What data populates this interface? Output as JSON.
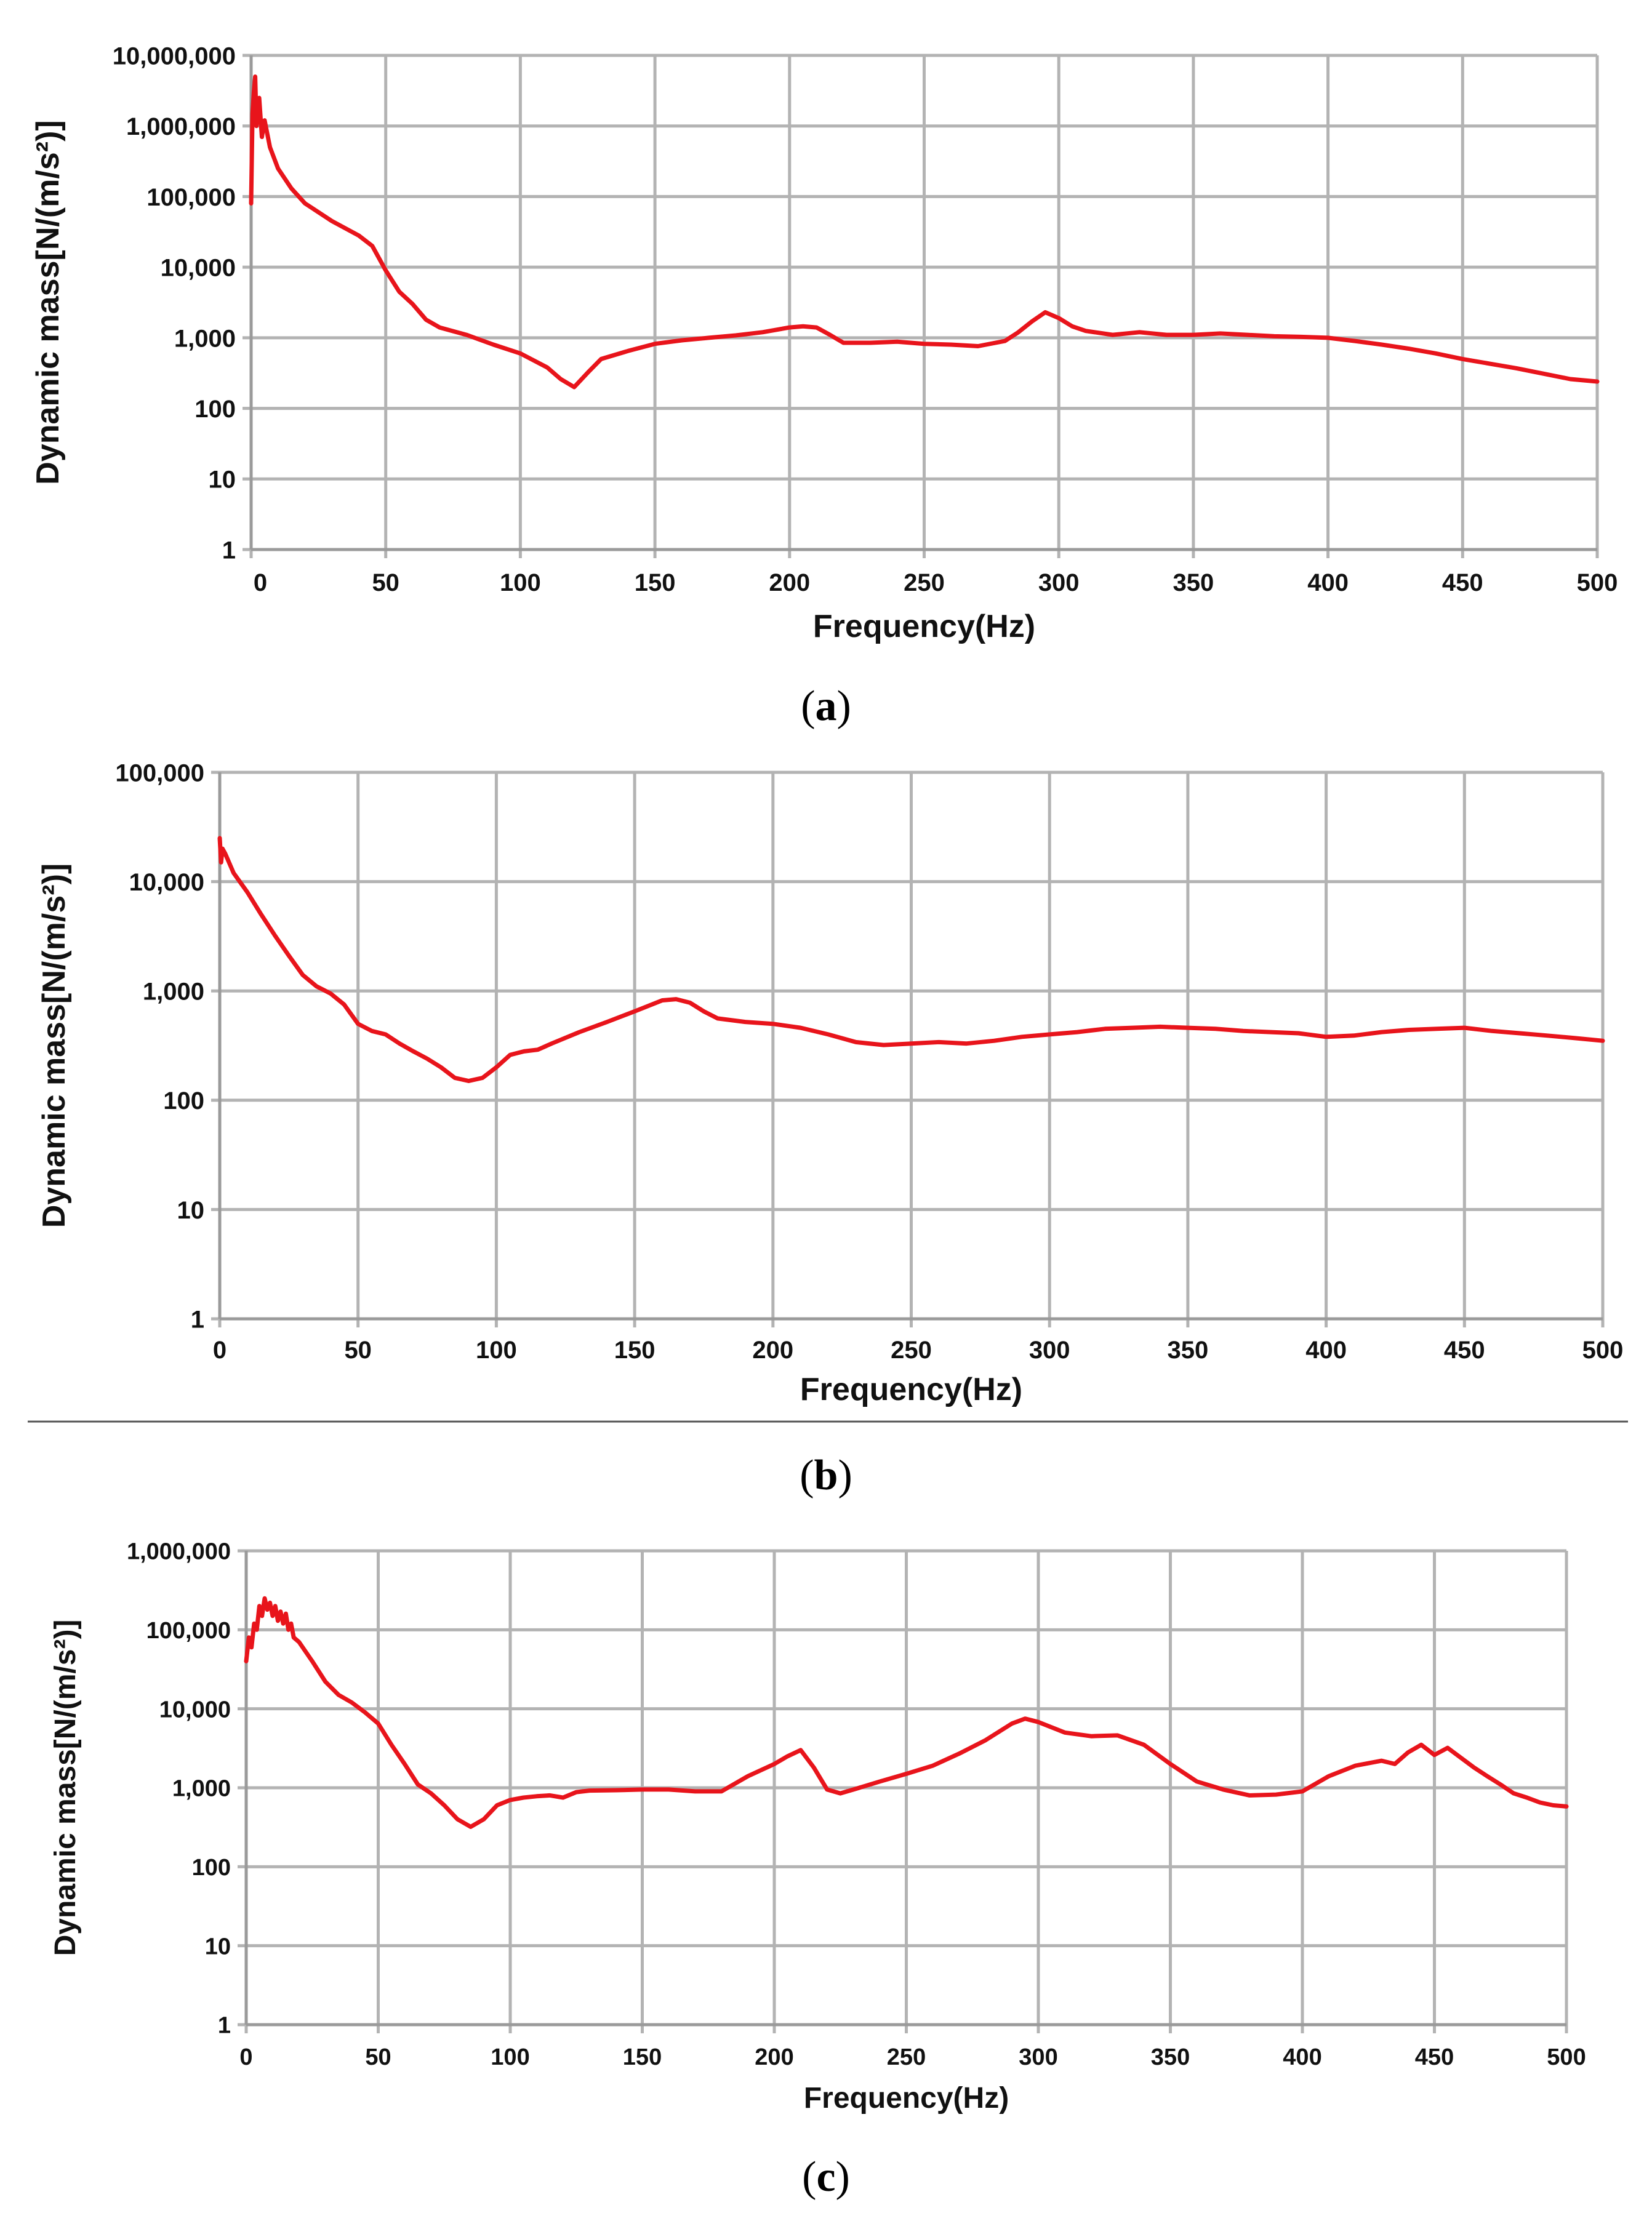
{
  "chart_data": [
    {
      "type": "line",
      "panel_label": "a",
      "xlabel": "Frequency(Hz)",
      "ylabel": "Dynamic mass[N/(m/s²)]",
      "yscale": "log",
      "xlim": [
        0,
        500
      ],
      "ylim": [
        1,
        10000000
      ],
      "xticks": [
        0,
        50,
        100,
        150,
        200,
        250,
        300,
        350,
        400,
        450,
        500
      ],
      "yticks": [
        1,
        10,
        100,
        1000,
        10000,
        100000,
        1000000,
        10000000
      ],
      "ytick_labels": [
        "1",
        "10",
        "100",
        "1,000",
        "10,000",
        "100,000",
        "1,000,000",
        "10,000,000"
      ],
      "grid": true,
      "series": [
        {
          "name": "Dynamic mass",
          "color": "#e8141b",
          "points": [
            [
              0,
              80000
            ],
            [
              0.5,
              1500000
            ],
            [
              1,
              3000000
            ],
            [
              1.5,
              5000000
            ],
            [
              2,
              1000000
            ],
            [
              3,
              2500000
            ],
            [
              4,
              700000
            ],
            [
              5,
              1200000
            ],
            [
              7,
              500000
            ],
            [
              10,
              250000
            ],
            [
              15,
              130000
            ],
            [
              20,
              80000
            ],
            [
              30,
              45000
            ],
            [
              40,
              28000
            ],
            [
              45,
              20000
            ],
            [
              50,
              9000
            ],
            [
              55,
              4500
            ],
            [
              60,
              3000
            ],
            [
              65,
              1800
            ],
            [
              70,
              1400
            ],
            [
              80,
              1100
            ],
            [
              90,
              800
            ],
            [
              100,
              600
            ],
            [
              110,
              380
            ],
            [
              115,
              260
            ],
            [
              120,
              200
            ],
            [
              125,
              320
            ],
            [
              130,
              500
            ],
            [
              140,
              650
            ],
            [
              150,
              820
            ],
            [
              160,
              920
            ],
            [
              170,
              1000
            ],
            [
              180,
              1080
            ],
            [
              190,
              1200
            ],
            [
              200,
              1400
            ],
            [
              205,
              1450
            ],
            [
              210,
              1400
            ],
            [
              215,
              1100
            ],
            [
              220,
              850
            ],
            [
              230,
              850
            ],
            [
              240,
              880
            ],
            [
              250,
              820
            ],
            [
              260,
              800
            ],
            [
              270,
              760
            ],
            [
              280,
              900
            ],
            [
              285,
              1200
            ],
            [
              290,
              1700
            ],
            [
              295,
              2300
            ],
            [
              300,
              1900
            ],
            [
              305,
              1450
            ],
            [
              310,
              1250
            ],
            [
              320,
              1100
            ],
            [
              330,
              1200
            ],
            [
              340,
              1100
            ],
            [
              350,
              1100
            ],
            [
              360,
              1150
            ],
            [
              370,
              1100
            ],
            [
              380,
              1050
            ],
            [
              390,
              1030
            ],
            [
              400,
              1000
            ],
            [
              410,
              900
            ],
            [
              420,
              800
            ],
            [
              430,
              700
            ],
            [
              440,
              600
            ],
            [
              450,
              500
            ],
            [
              460,
              430
            ],
            [
              470,
              370
            ],
            [
              480,
              310
            ],
            [
              490,
              260
            ],
            [
              500,
              240
            ]
          ]
        }
      ]
    },
    {
      "type": "line",
      "panel_label": "b",
      "xlabel": "Frequency(Hz)",
      "ylabel": "Dynamic mass[N/(m/s²)]",
      "yscale": "log",
      "xlim": [
        0,
        500
      ],
      "ylim": [
        1,
        100000
      ],
      "xticks": [
        0,
        50,
        100,
        150,
        200,
        250,
        300,
        350,
        400,
        450,
        500
      ],
      "yticks": [
        1,
        10,
        100,
        1000,
        10000,
        100000
      ],
      "ytick_labels": [
        "1",
        "10",
        "100",
        "1,000",
        "10,000",
        "100,000"
      ],
      "grid": true,
      "series": [
        {
          "name": "Dynamic mass",
          "color": "#e8141b",
          "points": [
            [
              0,
              25000
            ],
            [
              0.5,
              15000
            ],
            [
              1,
              20000
            ],
            [
              2,
              18000
            ],
            [
              5,
              12000
            ],
            [
              10,
              8000
            ],
            [
              15,
              5000
            ],
            [
              20,
              3200
            ],
            [
              25,
              2100
            ],
            [
              30,
              1400
            ],
            [
              35,
              1100
            ],
            [
              40,
              950
            ],
            [
              45,
              750
            ],
            [
              50,
              500
            ],
            [
              55,
              430
            ],
            [
              60,
              400
            ],
            [
              65,
              330
            ],
            [
              70,
              280
            ],
            [
              75,
              240
            ],
            [
              80,
              200
            ],
            [
              85,
              160
            ],
            [
              90,
              150
            ],
            [
              95,
              160
            ],
            [
              100,
              200
            ],
            [
              105,
              260
            ],
            [
              110,
              280
            ],
            [
              115,
              290
            ],
            [
              120,
              330
            ],
            [
              130,
              420
            ],
            [
              140,
              520
            ],
            [
              150,
              650
            ],
            [
              160,
              820
            ],
            [
              165,
              840
            ],
            [
              170,
              780
            ],
            [
              175,
              650
            ],
            [
              180,
              560
            ],
            [
              190,
              520
            ],
            [
              200,
              500
            ],
            [
              210,
              460
            ],
            [
              220,
              400
            ],
            [
              230,
              340
            ],
            [
              240,
              320
            ],
            [
              250,
              330
            ],
            [
              260,
              340
            ],
            [
              270,
              330
            ],
            [
              280,
              350
            ],
            [
              290,
              380
            ],
            [
              300,
              400
            ],
            [
              310,
              420
            ],
            [
              320,
              450
            ],
            [
              330,
              460
            ],
            [
              340,
              470
            ],
            [
              350,
              460
            ],
            [
              360,
              450
            ],
            [
              370,
              430
            ],
            [
              380,
              420
            ],
            [
              390,
              410
            ],
            [
              400,
              380
            ],
            [
              410,
              390
            ],
            [
              420,
              420
            ],
            [
              430,
              440
            ],
            [
              440,
              450
            ],
            [
              450,
              460
            ],
            [
              460,
              430
            ],
            [
              470,
              410
            ],
            [
              480,
              390
            ],
            [
              490,
              370
            ],
            [
              500,
              350
            ]
          ]
        }
      ]
    },
    {
      "type": "line",
      "panel_label": "c",
      "xlabel": "Frequency(Hz)",
      "ylabel": "Dynamic mass[N/(m/s²)]",
      "yscale": "log",
      "xlim": [
        0,
        500
      ],
      "ylim": [
        1,
        1000000
      ],
      "xticks": [
        0,
        50,
        100,
        150,
        200,
        250,
        300,
        350,
        400,
        450,
        500
      ],
      "yticks": [
        1,
        10,
        100,
        1000,
        10000,
        100000,
        1000000
      ],
      "ytick_labels": [
        "1",
        "10",
        "100",
        "1,000",
        "10,000",
        "100,000",
        "1,000,000"
      ],
      "grid": true,
      "series": [
        {
          "name": "Dynamic mass",
          "color": "#e8141b",
          "points": [
            [
              0,
              40000
            ],
            [
              1,
              80000
            ],
            [
              2,
              60000
            ],
            [
              3,
              120000
            ],
            [
              4,
              100000
            ],
            [
              5,
              200000
            ],
            [
              6,
              150000
            ],
            [
              7,
              250000
            ],
            [
              8,
              180000
            ],
            [
              9,
              220000
            ],
            [
              10,
              150000
            ],
            [
              11,
              200000
            ],
            [
              12,
              130000
            ],
            [
              13,
              170000
            ],
            [
              14,
              120000
            ],
            [
              15,
              160000
            ],
            [
              16,
              100000
            ],
            [
              17,
              120000
            ],
            [
              18,
              80000
            ],
            [
              20,
              70000
            ],
            [
              25,
              40000
            ],
            [
              30,
              22000
            ],
            [
              35,
              15000
            ],
            [
              40,
              12000
            ],
            [
              45,
              9000
            ],
            [
              50,
              6500
            ],
            [
              55,
              3500
            ],
            [
              60,
              2000
            ],
            [
              65,
              1100
            ],
            [
              70,
              850
            ],
            [
              75,
              600
            ],
            [
              80,
              400
            ],
            [
              85,
              320
            ],
            [
              90,
              400
            ],
            [
              95,
              600
            ],
            [
              100,
              700
            ],
            [
              105,
              750
            ],
            [
              110,
              780
            ],
            [
              115,
              800
            ],
            [
              120,
              750
            ],
            [
              125,
              880
            ],
            [
              130,
              920
            ],
            [
              140,
              930
            ],
            [
              150,
              950
            ],
            [
              160,
              950
            ],
            [
              170,
              900
            ],
            [
              180,
              900
            ],
            [
              190,
              1400
            ],
            [
              200,
              2000
            ],
            [
              205,
              2500
            ],
            [
              210,
              3000
            ],
            [
              215,
              1800
            ],
            [
              220,
              950
            ],
            [
              225,
              850
            ],
            [
              230,
              950
            ],
            [
              240,
              1200
            ],
            [
              250,
              1500
            ],
            [
              260,
              1900
            ],
            [
              270,
              2700
            ],
            [
              280,
              4000
            ],
            [
              290,
              6500
            ],
            [
              295,
              7500
            ],
            [
              300,
              6800
            ],
            [
              310,
              5000
            ],
            [
              320,
              4500
            ],
            [
              330,
              4600
            ],
            [
              340,
              3500
            ],
            [
              350,
              2000
            ],
            [
              360,
              1200
            ],
            [
              370,
              950
            ],
            [
              380,
              800
            ],
            [
              390,
              820
            ],
            [
              400,
              900
            ],
            [
              410,
              1400
            ],
            [
              420,
              1900
            ],
            [
              430,
              2200
            ],
            [
              435,
              2000
            ],
            [
              440,
              2800
            ],
            [
              445,
              3500
            ],
            [
              450,
              2600
            ],
            [
              455,
              3200
            ],
            [
              460,
              2400
            ],
            [
              465,
              1800
            ],
            [
              470,
              1400
            ],
            [
              475,
              1100
            ],
            [
              480,
              850
            ],
            [
              485,
              750
            ],
            [
              490,
              650
            ],
            [
              495,
              600
            ],
            [
              500,
              580
            ]
          ]
        }
      ]
    }
  ]
}
